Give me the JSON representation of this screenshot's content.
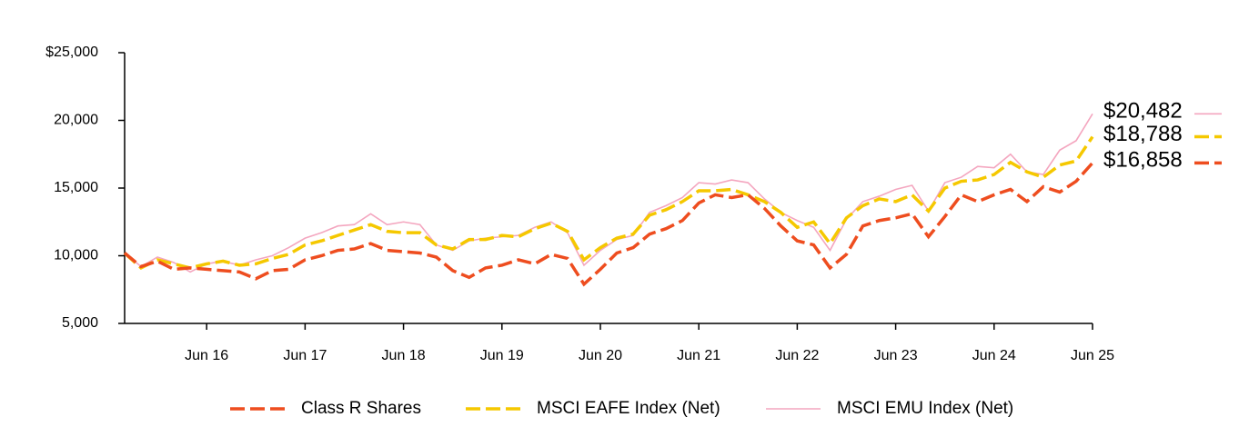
{
  "chart_data": {
    "type": "line",
    "categories": [
      null,
      null,
      null,
      null,
      null,
      "Jun 16",
      null,
      null,
      null,
      null,
      null,
      "Jun 17",
      null,
      null,
      null,
      null,
      null,
      "Jun 18",
      null,
      null,
      null,
      null,
      null,
      "Jun 19",
      null,
      null,
      null,
      null,
      null,
      "Jun 20",
      null,
      null,
      null,
      null,
      null,
      "Jun 21",
      null,
      null,
      null,
      null,
      null,
      "Jun 22",
      null,
      null,
      null,
      null,
      null,
      "Jun 23",
      null,
      null,
      null,
      null,
      null,
      "Jun 24",
      null,
      null,
      null,
      null,
      null,
      "Jun 25"
    ],
    "ylim": [
      5000,
      25000
    ],
    "yticks": [
      {
        "value": 5000,
        "label": "5,000"
      },
      {
        "value": 10000,
        "label": "10,000"
      },
      {
        "value": 15000,
        "label": "15,000"
      },
      {
        "value": 20000,
        "label": "20,000"
      },
      {
        "value": 25000,
        "label": "$25,000"
      }
    ],
    "series": [
      {
        "name": "Class R Shares",
        "color": "#ee4d1f",
        "dashed": true,
        "width": 3.5,
        "end_label": "$16,858",
        "values": [
          10200,
          9200,
          9600,
          9000,
          9100,
          9000,
          8900,
          8800,
          8300,
          8900,
          9000,
          9700,
          10000,
          10400,
          10500,
          10900,
          10400,
          10300,
          10200,
          9900,
          8900,
          8400,
          9100,
          9300,
          9700,
          9400,
          10100,
          9800,
          7900,
          9000,
          10200,
          10600,
          11600,
          12000,
          12600,
          13900,
          14500,
          14300,
          14500,
          13500,
          12200,
          11100,
          10800,
          9100,
          10100,
          12200,
          12600,
          12800,
          13100,
          11400,
          12900,
          14500,
          14000,
          14500,
          14900,
          14000,
          15100,
          14700,
          15500,
          16858
        ]
      },
      {
        "name": "MSCI EAFE Index (Net)",
        "color": "#f5c800",
        "dashed": true,
        "width": 3.5,
        "end_label": "$18,788",
        "values": [
          10200,
          9100,
          9700,
          9400,
          9100,
          9400,
          9600,
          9300,
          9400,
          9800,
          10100,
          10800,
          11100,
          11500,
          11900,
          12300,
          11800,
          11700,
          11700,
          10800,
          10500,
          11200,
          11200,
          11500,
          11400,
          12000,
          12400,
          11800,
          9700,
          10600,
          11300,
          11600,
          13000,
          13400,
          14000,
          14800,
          14800,
          14900,
          14500,
          14000,
          13200,
          12100,
          12500,
          10900,
          12800,
          13700,
          14200,
          14000,
          14500,
          13300,
          15000,
          15500,
          15600,
          16000,
          16900,
          16200,
          15800,
          16700,
          17000,
          18788
        ]
      },
      {
        "name": "MSCI EMU Index (Net)",
        "color": "#f4a6bf",
        "dashed": false,
        "width": 1.6,
        "end_label": "$20,482",
        "values": [
          10200,
          9200,
          9900,
          9500,
          8800,
          9400,
          9600,
          9300,
          9700,
          10000,
          10600,
          11300,
          11700,
          12200,
          12300,
          13100,
          12300,
          12500,
          12300,
          10800,
          10400,
          11100,
          11300,
          11400,
          11500,
          12100,
          12500,
          11700,
          9300,
          10400,
          11200,
          11500,
          13200,
          13700,
          14300,
          15400,
          15300,
          15600,
          15400,
          14200,
          13200,
          12600,
          12100,
          10400,
          12700,
          14000,
          14400,
          14900,
          15200,
          13300,
          15400,
          15800,
          16600,
          16500,
          17500,
          16200,
          16000,
          17800,
          18500,
          20482
        ]
      }
    ]
  }
}
